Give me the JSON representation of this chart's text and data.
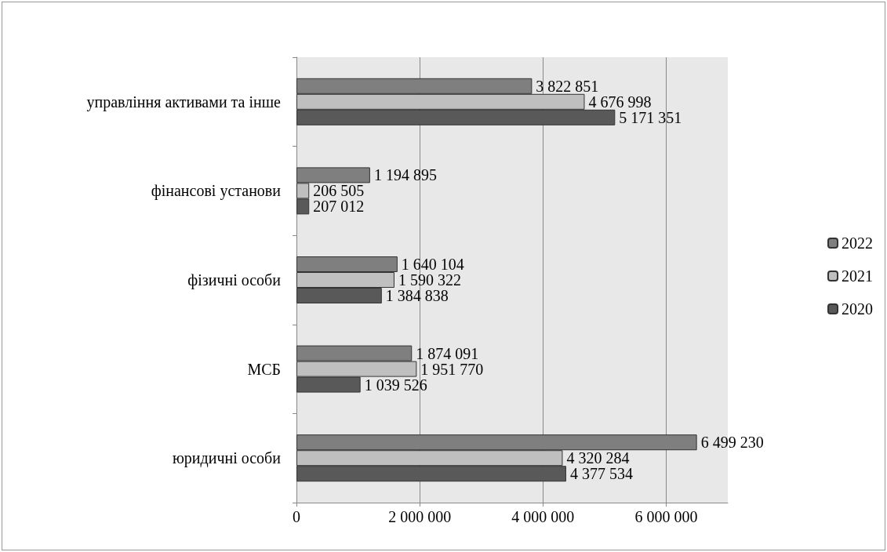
{
  "chart_data": {
    "type": "bar",
    "orientation": "horizontal",
    "categories": [
      "управління активами та інше",
      "фінансові установи",
      "фізичні особи",
      "МСБ",
      "юридичні особи"
    ],
    "series": [
      {
        "name": "2022",
        "color": "#7f7f7f",
        "values": [
          3822851,
          1194895,
          1640104,
          1874091,
          6499230
        ],
        "value_labels": [
          "3 822 851",
          "1 194 895",
          "1 640 104",
          "1 874 091",
          "6 499 230"
        ]
      },
      {
        "name": "2021",
        "color": "#bfbfbf",
        "values": [
          4676998,
          206505,
          1590322,
          1951770,
          4320284
        ],
        "value_labels": [
          "4 676 998",
          "206 505",
          "1 590 322",
          "1 951 770",
          "4 320 284"
        ]
      },
      {
        "name": "2020",
        "color": "#595959",
        "values": [
          5171351,
          207012,
          1384838,
          1039526,
          4377534
        ],
        "value_labels": [
          "5 171 351",
          "207 012",
          "1 384 838",
          "1 039 526",
          "4 377 534"
        ]
      }
    ],
    "xlim": [
      0,
      7000000
    ],
    "xticks": [
      0,
      {
        "value": 2000000,
        "label": "2 000 000"
      },
      {
        "value": 4000000,
        "label": "4 000 000"
      },
      {
        "value": 6000000,
        "label": "6 000 000"
      }
    ],
    "grid": "x",
    "legend": "right"
  }
}
